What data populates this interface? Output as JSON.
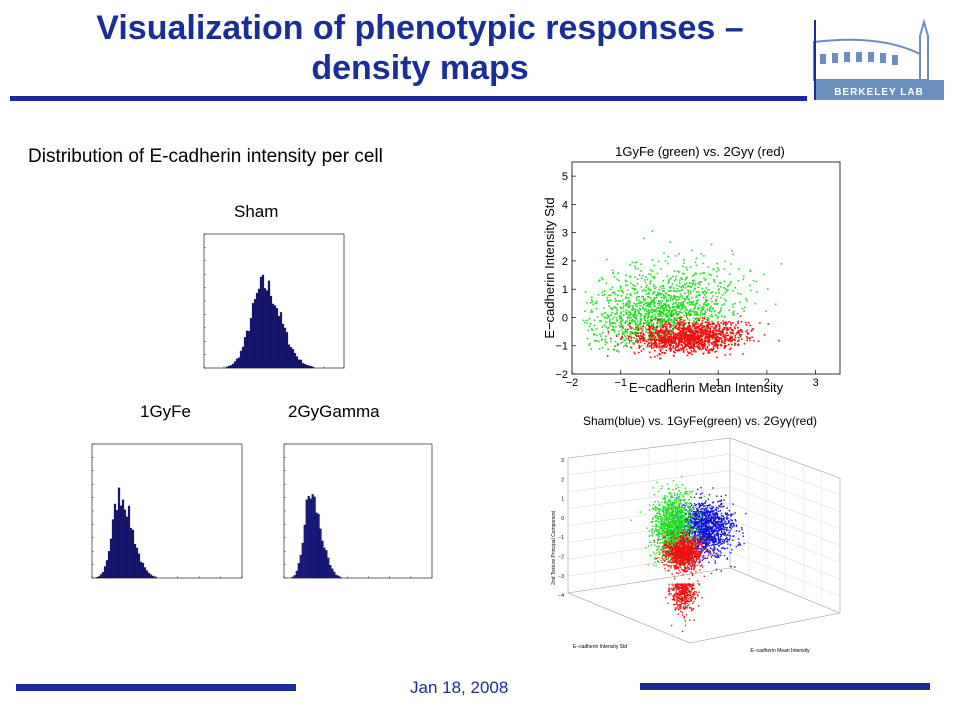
{
  "slide": {
    "title_line1": "Visualization of phenotypic responses –",
    "title_line2": "density maps",
    "subtitle": "Distribution of E-cadherin intensity per cell",
    "date": "Jan 18,  2008",
    "logo_text": "BERKELEY LAB"
  },
  "colors": {
    "title": "#1a2e9a",
    "rule": "#1c2a9e",
    "bars": "#1a1a7a",
    "green": "#22dd22",
    "red": "#ee1111",
    "blue": "#1111dd"
  },
  "histograms": [
    {
      "label": "Sham"
    },
    {
      "label": "1GyFe"
    },
    {
      "label": "2GyGamma"
    }
  ],
  "scatter2d": {
    "title": "1GyFe (green) vs. 2Gyγ (red)",
    "xlabel": "E−cadherin Mean Intensity",
    "ylabel": "E−cadherin Intensity Std",
    "xticks": [
      "−2",
      "−1",
      "0",
      "1",
      "2",
      "3"
    ],
    "yticks": [
      "5",
      "4",
      "3",
      "2",
      "1",
      "0",
      "−1",
      "−2"
    ]
  },
  "scatter3d": {
    "title": "Sham(blue) vs. 1GyFe(green) vs. 2Gyγ(red)",
    "xlabel": "E−cadherin Mean Intensity",
    "ylabel": "E−cadherin Intensity Std",
    "zlabel": "2nd Texture Principal Component",
    "zticks": [
      "3",
      "2",
      "1",
      "0",
      "−1",
      "−2",
      "−3",
      "−4"
    ]
  }
}
